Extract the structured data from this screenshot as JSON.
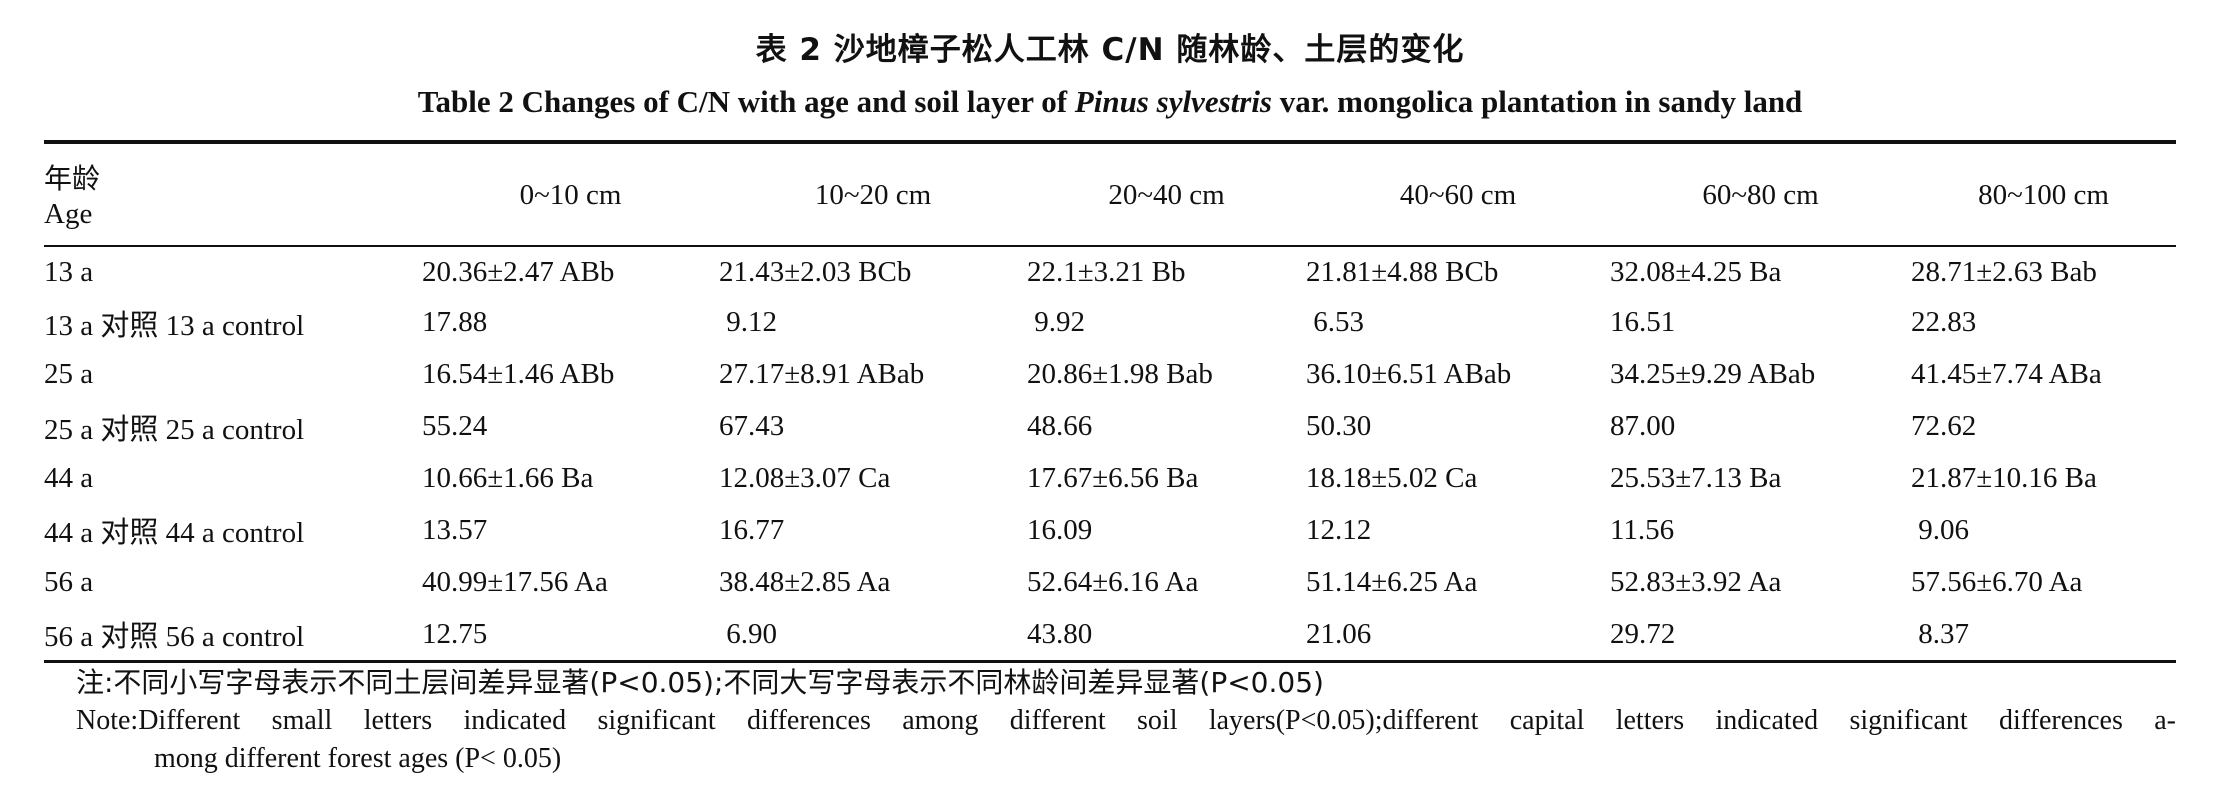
{
  "title": {
    "cn": "表 2   沙地樟子松人工林 C/N 随林龄、土层的变化",
    "en_prefix": "Table 2   Changes of C/N with age and soil layer of ",
    "en_italic": "Pinus sylvestris",
    "en_suffix": " var. mongolica plantation in sandy land"
  },
  "table": {
    "age_header_cn": "年龄",
    "age_header_en": "Age",
    "columns": [
      "0~10 cm",
      "10~20 cm",
      "20~40 cm",
      "40~60 cm",
      "60~80 cm",
      "80~100 cm"
    ],
    "rows": [
      {
        "age": "13 a",
        "values": [
          "20.36±2.47 ABb",
          "21.43±2.03 BCb",
          "22.1±3.21 Bb",
          "21.81±4.88 BCb",
          "32.08±4.25 Ba",
          "28.71±2.63 Bab"
        ]
      },
      {
        "age": "13 a 对照 13 a control",
        "values": [
          "17.88",
          " 9.12",
          " 9.92",
          " 6.53",
          "16.51",
          "22.83"
        ]
      },
      {
        "age": "25 a",
        "values": [
          "16.54±1.46 ABb",
          "27.17±8.91 ABab",
          "20.86±1.98 Bab",
          "36.10±6.51 ABab",
          "34.25±9.29 ABab",
          "41.45±7.74 ABa"
        ]
      },
      {
        "age": "25 a 对照 25 a control",
        "values": [
          "55.24",
          "67.43",
          "48.66",
          "50.30",
          "87.00",
          "72.62"
        ]
      },
      {
        "age": "44 a",
        "values": [
          "10.66±1.66 Ba",
          "12.08±3.07 Ca",
          "17.67±6.56 Ba",
          "18.18±5.02 Ca",
          "25.53±7.13 Ba",
          "21.87±10.16 Ba"
        ]
      },
      {
        "age": "44 a 对照 44 a control",
        "values": [
          "13.57",
          "16.77",
          "16.09",
          "12.12",
          "11.56",
          " 9.06"
        ]
      },
      {
        "age": "56 a",
        "values": [
          "40.99±17.56 Aa",
          "38.48±2.85 Aa",
          "52.64±6.16 Aa",
          "51.14±6.25 Aa",
          "52.83±3.92 Aa",
          "57.56±6.70 Aa"
        ]
      },
      {
        "age": "56 a 对照 56 a control",
        "values": [
          "12.75",
          " 6.90",
          "43.80",
          "21.06",
          "29.72",
          " 8.37"
        ]
      }
    ]
  },
  "notes": {
    "cn": "注:不同小写字母表示不同土层间差异显著(P<0.05);不同大写字母表示不同林龄间差异显著(P<0.05)",
    "en_line1": "Note:Different small letters indicated significant differences among different soil layers(P<0.05);different capital letters indicated significant differences a-",
    "en_line2": "mong different forest ages (P< 0.05)"
  }
}
